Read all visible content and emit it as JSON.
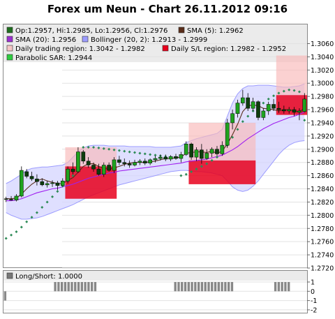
{
  "title": "Forex um Neun - Chart 26.11.2012 09:16",
  "legend": [
    {
      "text": "Op:1.2957, Hi:1.2985, Lo:1.2956, Cl:1.2976",
      "color": "#1f6e1f"
    },
    {
      "text": "SMA (5): 1.2962",
      "color": "#5a2e1a"
    },
    {
      "text": "SMA (20): 1.2956",
      "color": "#9b30d0"
    },
    {
      "text": "Bollinger (20, 2): 1.2913 - 1.2999",
      "color": "#9c9cff"
    },
    {
      "text": "Daily trading region: 1.3042 - 1.2982",
      "color": "#f5c6c6"
    },
    {
      "text": "Daily S/L region: 1.2982 - 1.2952",
      "color": "#e8001c"
    },
    {
      "text": "Parabolic SAR: 1.2944",
      "color": "#2ecc40"
    }
  ],
  "sub_legend": {
    "text": "Long/Short: 1.0000",
    "color": "#777777"
  },
  "colors": {
    "bull": "#1fa31f",
    "bear": "#0d3d0d",
    "bollinger_fill": "#d4d4ff",
    "bollinger_line": "#9c9cff",
    "sma5": "#5a2e1a",
    "sma20": "#a020f0",
    "sar": "#2e8b57",
    "trading_region": "#f9b9b9",
    "sl_region": "#e8001c",
    "sl_region_dark": "#d0103a",
    "signal_bar": "#888888"
  },
  "chart_data": [
    {
      "type": "candlestick",
      "y_ticks": [
        "1.3060",
        "1.3040",
        "1.3020",
        "1.3000",
        "1.2980",
        "1.2960",
        "1.2940",
        "1.2920",
        "1.2900",
        "1.2880",
        "1.2860",
        "1.2840",
        "1.2820",
        "1.2800",
        "1.2780",
        "1.2760",
        "1.2740",
        "1.2720"
      ],
      "ylim": [
        1.272,
        1.307
      ],
      "candles": [
        {
          "o": 1.2825,
          "h": 1.2828,
          "l": 1.282,
          "c": 1.2824
        },
        {
          "o": 1.2824,
          "h": 1.2829,
          "l": 1.2822,
          "c": 1.2823
        },
        {
          "o": 1.2823,
          "h": 1.2832,
          "l": 1.2821,
          "c": 1.2829
        },
        {
          "o": 1.2829,
          "h": 1.2874,
          "l": 1.2827,
          "c": 1.2868
        },
        {
          "o": 1.2866,
          "h": 1.287,
          "l": 1.2856,
          "c": 1.2859
        },
        {
          "o": 1.2859,
          "h": 1.2866,
          "l": 1.2852,
          "c": 1.2855
        },
        {
          "o": 1.2855,
          "h": 1.2862,
          "l": 1.2845,
          "c": 1.2851
        },
        {
          "o": 1.2851,
          "h": 1.2856,
          "l": 1.2844,
          "c": 1.2846
        },
        {
          "o": 1.2846,
          "h": 1.2852,
          "l": 1.2842,
          "c": 1.2848
        },
        {
          "o": 1.2848,
          "h": 1.2853,
          "l": 1.2843,
          "c": 1.2849
        },
        {
          "o": 1.2849,
          "h": 1.2852,
          "l": 1.2838,
          "c": 1.2845
        },
        {
          "o": 1.2845,
          "h": 1.2856,
          "l": 1.2844,
          "c": 1.2852
        },
        {
          "o": 1.2852,
          "h": 1.2874,
          "l": 1.2848,
          "c": 1.287
        },
        {
          "o": 1.287,
          "h": 1.288,
          "l": 1.2862,
          "c": 1.2866
        },
        {
          "o": 1.2866,
          "h": 1.2903,
          "l": 1.2864,
          "c": 1.2896
        },
        {
          "o": 1.2896,
          "h": 1.2899,
          "l": 1.2878,
          "c": 1.2882
        },
        {
          "o": 1.2882,
          "h": 1.2888,
          "l": 1.2872,
          "c": 1.2876
        },
        {
          "o": 1.2876,
          "h": 1.288,
          "l": 1.2866,
          "c": 1.287
        },
        {
          "o": 1.287,
          "h": 1.2878,
          "l": 1.286,
          "c": 1.2862
        },
        {
          "o": 1.2862,
          "h": 1.288,
          "l": 1.2858,
          "c": 1.2876
        },
        {
          "o": 1.2876,
          "h": 1.288,
          "l": 1.2866,
          "c": 1.2868
        },
        {
          "o": 1.2868,
          "h": 1.2888,
          "l": 1.2864,
          "c": 1.2884
        },
        {
          "o": 1.2884,
          "h": 1.289,
          "l": 1.2876,
          "c": 1.288
        },
        {
          "o": 1.288,
          "h": 1.2886,
          "l": 1.2874,
          "c": 1.2878
        },
        {
          "o": 1.2878,
          "h": 1.2883,
          "l": 1.2872,
          "c": 1.2876
        },
        {
          "o": 1.2876,
          "h": 1.2884,
          "l": 1.2874,
          "c": 1.288
        },
        {
          "o": 1.288,
          "h": 1.2885,
          "l": 1.2876,
          "c": 1.2882
        },
        {
          "o": 1.2882,
          "h": 1.2886,
          "l": 1.2876,
          "c": 1.2879
        },
        {
          "o": 1.2879,
          "h": 1.2886,
          "l": 1.2876,
          "c": 1.2884
        },
        {
          "o": 1.2884,
          "h": 1.289,
          "l": 1.288,
          "c": 1.2886
        },
        {
          "o": 1.2886,
          "h": 1.2892,
          "l": 1.2883,
          "c": 1.2888
        },
        {
          "o": 1.2888,
          "h": 1.2892,
          "l": 1.2882,
          "c": 1.2885
        },
        {
          "o": 1.2885,
          "h": 1.2891,
          "l": 1.2882,
          "c": 1.2889
        },
        {
          "o": 1.2889,
          "h": 1.2893,
          "l": 1.2884,
          "c": 1.2886
        },
        {
          "o": 1.2886,
          "h": 1.2896,
          "l": 1.288,
          "c": 1.2892
        },
        {
          "o": 1.2892,
          "h": 1.2912,
          "l": 1.289,
          "c": 1.2908
        },
        {
          "o": 1.2908,
          "h": 1.291,
          "l": 1.2884,
          "c": 1.2888
        },
        {
          "o": 1.2888,
          "h": 1.2903,
          "l": 1.2882,
          "c": 1.2899
        },
        {
          "o": 1.2899,
          "h": 1.2908,
          "l": 1.2878,
          "c": 1.2886
        },
        {
          "o": 1.2886,
          "h": 1.29,
          "l": 1.2884,
          "c": 1.2894
        },
        {
          "o": 1.2894,
          "h": 1.2903,
          "l": 1.2888,
          "c": 1.29
        },
        {
          "o": 1.29,
          "h": 1.2905,
          "l": 1.289,
          "c": 1.2893
        },
        {
          "o": 1.2893,
          "h": 1.2912,
          "l": 1.289,
          "c": 1.2906
        },
        {
          "o": 1.2906,
          "h": 1.2946,
          "l": 1.2902,
          "c": 1.294
        },
        {
          "o": 1.294,
          "h": 1.296,
          "l": 1.293,
          "c": 1.2954
        },
        {
          "o": 1.2954,
          "h": 1.2975,
          "l": 1.2948,
          "c": 1.297
        },
        {
          "o": 1.297,
          "h": 1.299,
          "l": 1.2966,
          "c": 1.2978
        },
        {
          "o": 1.2978,
          "h": 1.2985,
          "l": 1.2958,
          "c": 1.2962
        },
        {
          "o": 1.2962,
          "h": 1.2978,
          "l": 1.2958,
          "c": 1.2972
        },
        {
          "o": 1.2972,
          "h": 1.2974,
          "l": 1.2944,
          "c": 1.2948
        },
        {
          "o": 1.2948,
          "h": 1.2962,
          "l": 1.2944,
          "c": 1.2958
        },
        {
          "o": 1.2958,
          "h": 1.2972,
          "l": 1.2952,
          "c": 1.2968
        },
        {
          "o": 1.2968,
          "h": 1.2976,
          "l": 1.2958,
          "c": 1.2962
        },
        {
          "o": 1.2962,
          "h": 1.2972,
          "l": 1.2955,
          "c": 1.296
        },
        {
          "o": 1.296,
          "h": 1.2966,
          "l": 1.2954,
          "c": 1.2958
        },
        {
          "o": 1.2958,
          "h": 1.2964,
          "l": 1.2954,
          "c": 1.296
        },
        {
          "o": 1.296,
          "h": 1.2964,
          "l": 1.295,
          "c": 1.2956
        },
        {
          "o": 1.2956,
          "h": 1.2962,
          "l": 1.2944,
          "c": 1.2958
        },
        {
          "o": 1.2957,
          "h": 1.2985,
          "l": 1.2956,
          "c": 1.2976
        }
      ],
      "sma5": [
        1.2825,
        1.2825,
        1.2826,
        1.2832,
        1.284,
        1.2847,
        1.2852,
        1.2855,
        1.2852,
        1.285,
        1.2848,
        1.2848,
        1.2853,
        1.2857,
        1.2865,
        1.2874,
        1.2878,
        1.2878,
        1.2874,
        1.2871,
        1.287,
        1.2872,
        1.2874,
        1.2877,
        1.2879,
        1.288,
        1.288,
        1.288,
        1.2881,
        1.2882,
        1.2884,
        1.2886,
        1.2886,
        1.2887,
        1.2888,
        1.2894,
        1.2895,
        1.2896,
        1.2896,
        1.2895,
        1.2897,
        1.2894,
        1.2897,
        1.2908,
        1.2922,
        1.2938,
        1.2957,
        1.2966,
        1.2967,
        1.2966,
        1.2962,
        1.2961,
        1.296,
        1.2958,
        1.296,
        1.296,
        1.2958,
        1.2957,
        1.2962
      ],
      "sma20": [
        1.2822,
        1.2822,
        1.2823,
        1.2825,
        1.2828,
        1.2831,
        1.2834,
        1.2836,
        1.2838,
        1.284,
        1.2841,
        1.2843,
        1.2845,
        1.2847,
        1.285,
        1.2853,
        1.2856,
        1.2858,
        1.286,
        1.2862,
        1.2864,
        1.2865,
        1.2867,
        1.2868,
        1.2869,
        1.287,
        1.2871,
        1.2872,
        1.2873,
        1.2874,
        1.2875,
        1.2876,
        1.2877,
        1.2878,
        1.2879,
        1.2881,
        1.2882,
        1.2883,
        1.2884,
        1.2885,
        1.2887,
        1.2889,
        1.2891,
        1.2895,
        1.2899,
        1.2904,
        1.291,
        1.2916,
        1.2921,
        1.2926,
        1.2931,
        1.2935,
        1.2939,
        1.2942,
        1.2945,
        1.2948,
        1.295,
        1.2953,
        1.2956
      ],
      "boll_upper": [
        1.2848,
        1.2852,
        1.2857,
        1.2862,
        1.2868,
        1.2871,
        1.2872,
        1.2873,
        1.2873,
        1.2874,
        1.2875,
        1.2876,
        1.288,
        1.2888,
        1.2896,
        1.2902,
        1.2905,
        1.2906,
        1.2906,
        1.2906,
        1.2905,
        1.2905,
        1.2905,
        1.2905,
        1.2904,
        1.2904,
        1.2904,
        1.2904,
        1.2904,
        1.2903,
        1.2903,
        1.2903,
        1.2903,
        1.2904,
        1.2905,
        1.291,
        1.2913,
        1.2916,
        1.2918,
        1.292,
        1.2922,
        1.2924,
        1.293,
        1.295,
        1.297,
        1.2984,
        1.2992,
        1.2996,
        1.2996,
        1.2997,
        1.2997,
        1.2997,
        1.2996,
        1.2995,
        1.2994,
        1.2994,
        1.2995,
        1.2996,
        1.2999
      ],
      "boll_lower": [
        1.2804,
        1.28,
        1.2797,
        1.2794,
        1.2794,
        1.2795,
        1.2796,
        1.2798,
        1.2801,
        1.2804,
        1.2807,
        1.281,
        1.2813,
        1.2816,
        1.282,
        1.2824,
        1.2828,
        1.2831,
        1.2834,
        1.2837,
        1.284,
        1.2843,
        1.2846,
        1.2848,
        1.285,
        1.2852,
        1.2854,
        1.2856,
        1.2858,
        1.286,
        1.2862,
        1.2864,
        1.2866,
        1.2867,
        1.2868,
        1.2868,
        1.2867,
        1.2866,
        1.2866,
        1.2865,
        1.2864,
        1.2862,
        1.286,
        1.2852,
        1.2843,
        1.2838,
        1.2836,
        1.2838,
        1.2844,
        1.2852,
        1.2862,
        1.2872,
        1.2882,
        1.2892,
        1.29,
        1.2906,
        1.291,
        1.2912,
        1.2913
      ],
      "sar": [
        1.2765,
        1.277,
        1.2775,
        1.2782,
        1.279,
        1.2797,
        1.2804,
        1.2812,
        1.282,
        1.2828,
        1.2836,
        1.2844,
        1.2852,
        1.286,
        1.2874,
        1.2903,
        1.2903,
        1.2903,
        1.2902,
        1.2901,
        1.29,
        1.2899,
        1.2898,
        1.2897,
        1.2896,
        1.2895,
        1.2894,
        1.2893,
        1.2892,
        1.2891,
        1.289,
        1.2889,
        1.2888,
        null,
        1.286,
        1.2862,
        1.2866,
        1.287,
        1.2874,
        1.2878,
        1.2883,
        1.2888,
        1.2896,
        1.2906,
        1.2918,
        1.293,
        1.2942,
        1.295,
        1.2958,
        1.2964,
        1.297,
        1.2976,
        1.2981,
        1.2985,
        1.2988,
        1.299,
        1.2989,
        1.2987,
        1.2944
      ],
      "regions": [
        {
          "start": 12,
          "end": 21,
          "trading": [
            1.2903,
            1.2874
          ],
          "sl": [
            1.2874,
            1.2825
          ]
        },
        {
          "start": 36,
          "end": 48,
          "trading": [
            1.294,
            1.2883
          ],
          "sl": [
            1.2883,
            1.2847
          ]
        },
        {
          "start": 53,
          "end": 58,
          "trading": [
            1.3042,
            1.2982
          ],
          "sl": [
            1.2982,
            1.2952
          ]
        }
      ]
    },
    {
      "type": "bar",
      "y_ticks": [
        "1",
        "0",
        "-1",
        "-2"
      ],
      "ylim": [
        -2,
        1
      ],
      "values": [
        -1,
        0,
        0,
        0,
        0,
        0,
        0,
        0,
        0,
        0,
        0,
        0,
        0,
        0,
        0,
        1,
        1,
        1,
        1,
        1,
        1,
        1,
        1,
        1,
        1,
        1,
        1,
        1,
        0,
        0,
        0,
        0,
        0,
        0,
        0,
        0,
        0,
        0,
        0,
        0,
        0,
        0,
        0,
        0,
        0,
        0,
        0,
        0,
        0,
        0,
        0,
        1,
        1,
        1,
        1,
        1,
        1,
        1,
        1,
        1,
        1,
        1,
        1,
        1,
        1,
        1,
        1,
        1,
        1,
        0,
        0,
        0,
        0,
        0,
        0,
        0,
        0,
        0,
        0,
        0,
        0,
        1,
        1,
        1,
        1,
        1,
        0,
        0,
        0,
        0,
        0
      ]
    }
  ]
}
